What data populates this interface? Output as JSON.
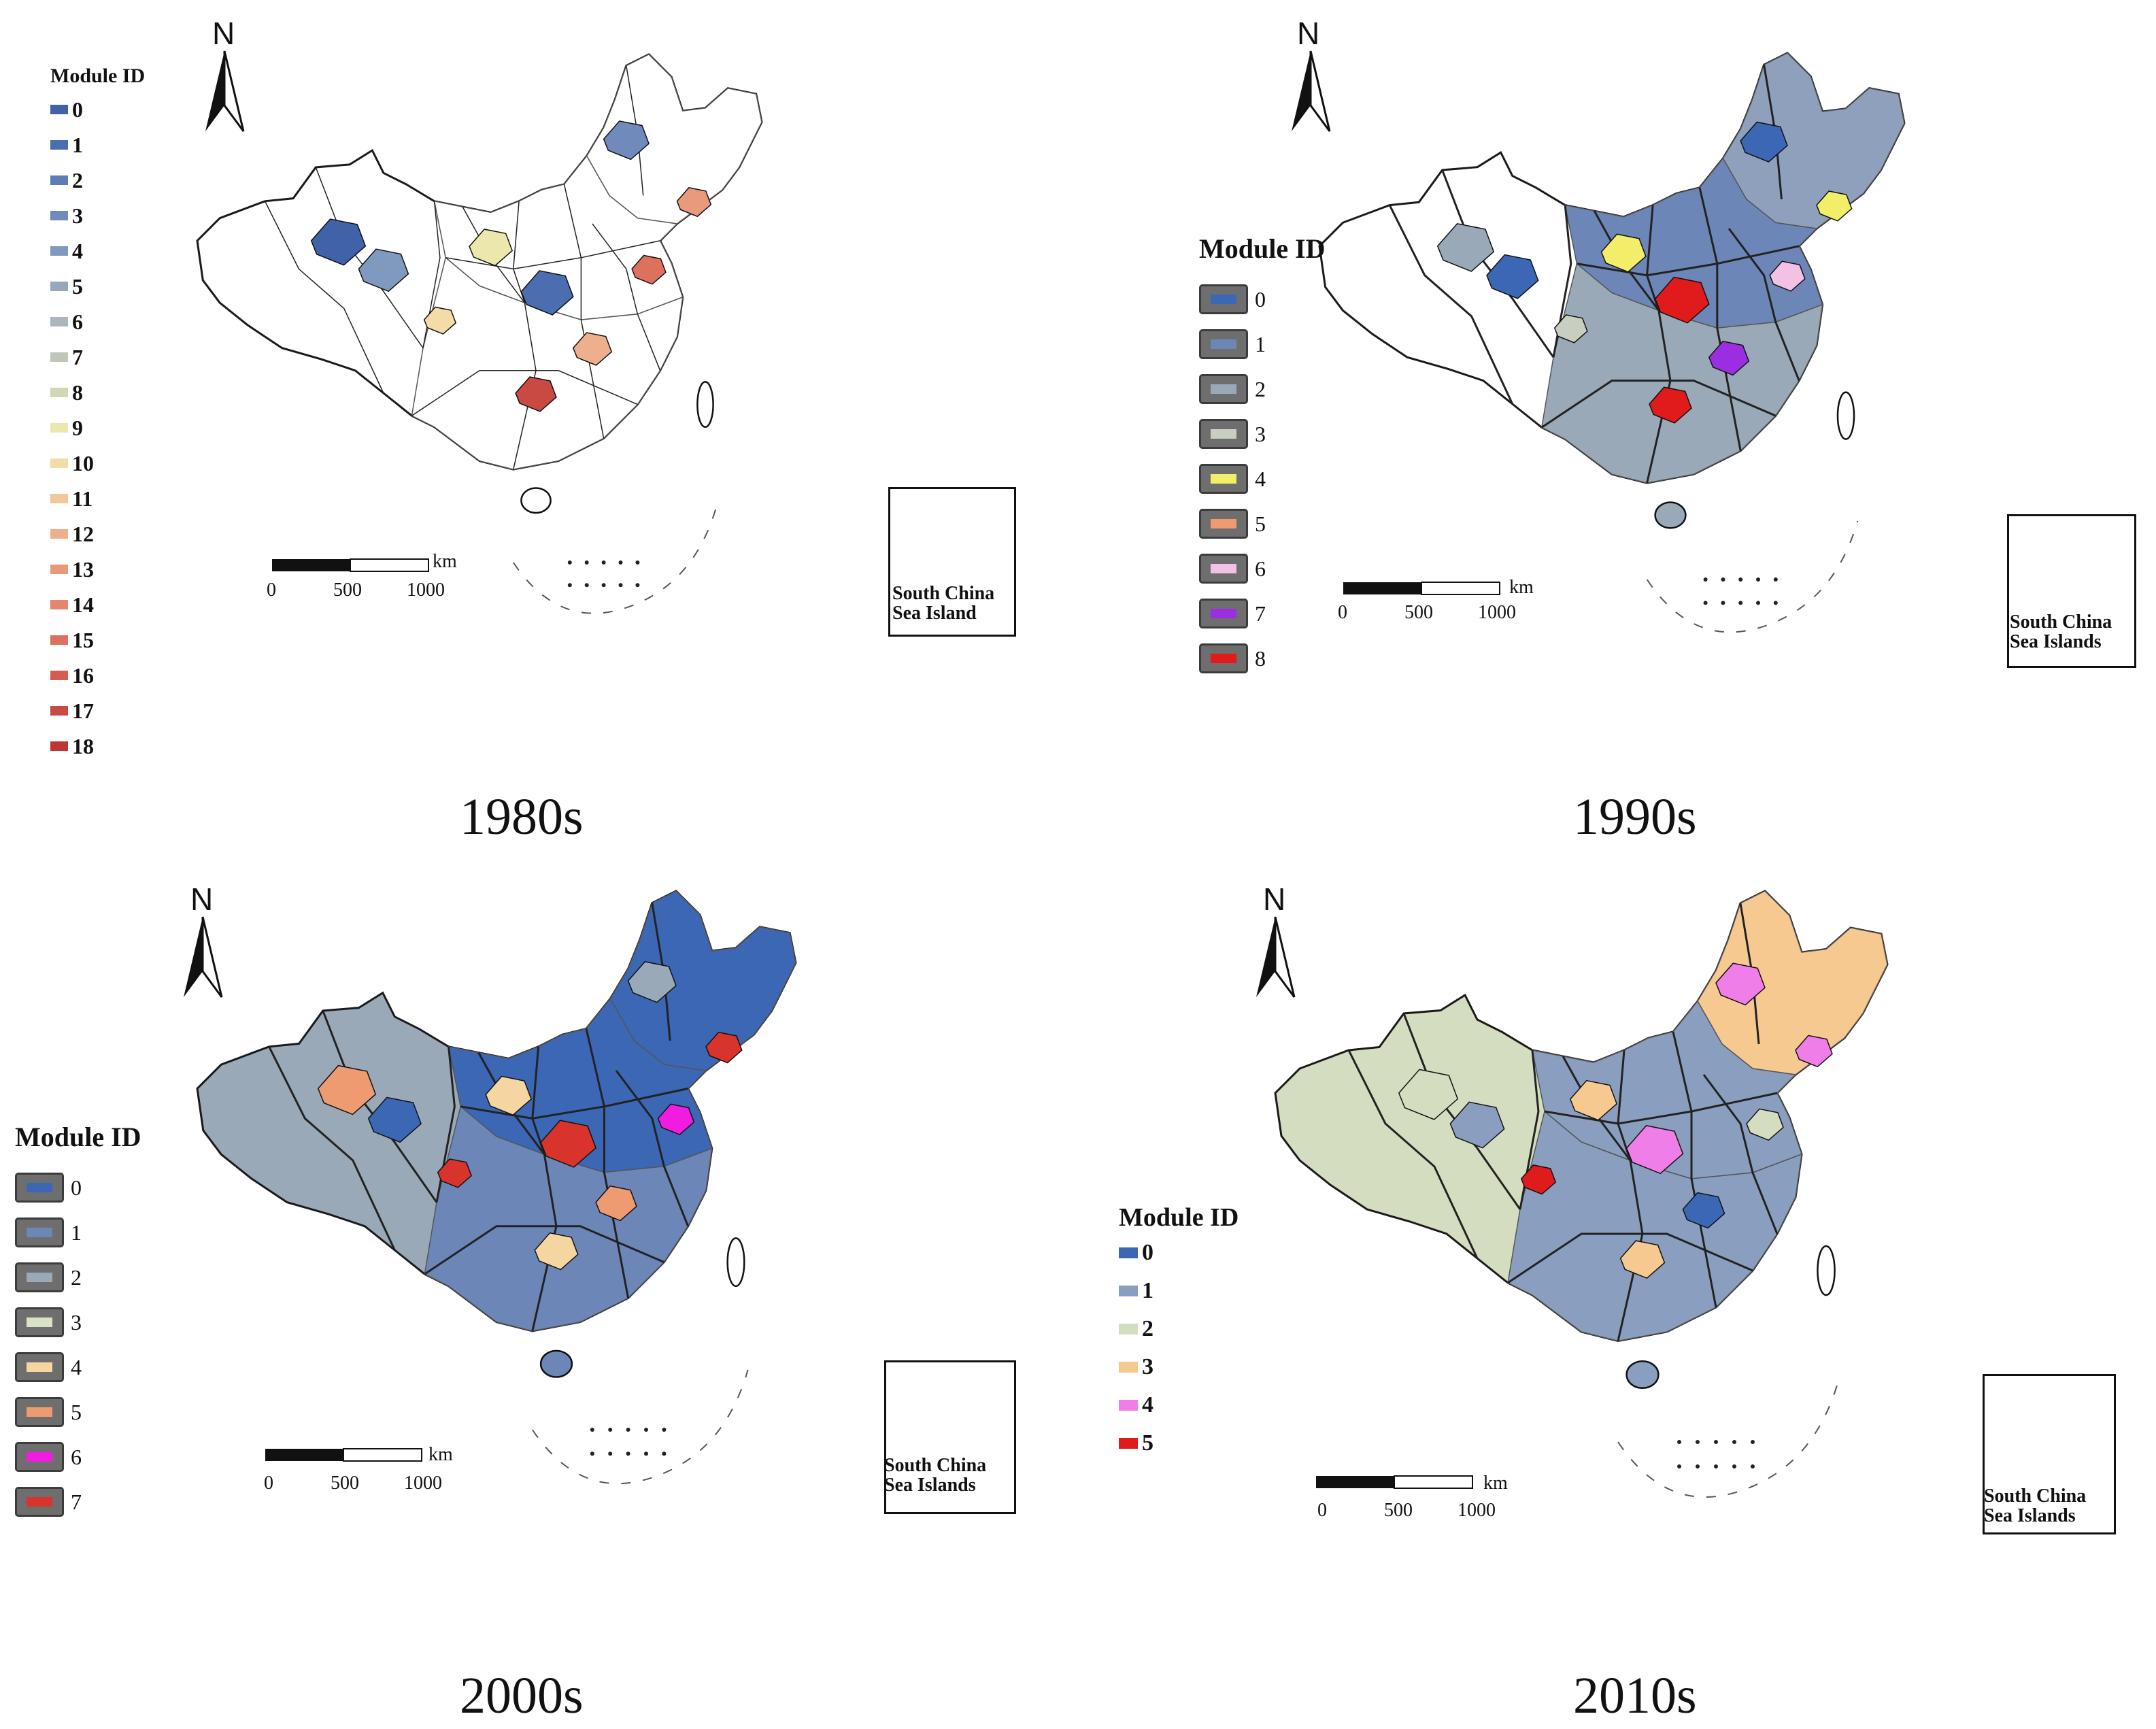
{
  "figure_title": "",
  "colors": {
    "outline": "#1a1a1a",
    "empty": "#ffffff",
    "panel_bg": "#f7f7f7"
  },
  "panels": [
    {
      "id": "p1980",
      "caption": "1980s",
      "legend": {
        "title": "Module ID",
        "style": "plain",
        "items": [
          {
            "label": "0",
            "color": "#3f62a8"
          },
          {
            "label": "1",
            "color": "#4a6eb0"
          },
          {
            "label": "2",
            "color": "#5c7db8"
          },
          {
            "label": "3",
            "color": "#6f8abb"
          },
          {
            "label": "4",
            "color": "#8099bf"
          },
          {
            "label": "5",
            "color": "#96a8be"
          },
          {
            "label": "6",
            "color": "#aab8bd"
          },
          {
            "label": "7",
            "color": "#bfc8b8"
          },
          {
            "label": "8",
            "color": "#d3d8b2"
          },
          {
            "label": "9",
            "color": "#ece8ad"
          },
          {
            "label": "10",
            "color": "#f3dca6"
          },
          {
            "label": "11",
            "color": "#f1c79b"
          },
          {
            "label": "12",
            "color": "#eeb08c"
          },
          {
            "label": "13",
            "color": "#e99a7c"
          },
          {
            "label": "14",
            "color": "#e3866c"
          },
          {
            "label": "15",
            "color": "#dc725d"
          },
          {
            "label": "16",
            "color": "#d35e4f"
          },
          {
            "label": "17",
            "color": "#c94a42"
          },
          {
            "label": "18",
            "color": "#bf3535"
          }
        ]
      },
      "north": "N",
      "scale": {
        "ticks": [
          "0",
          "500",
          "1000"
        ],
        "unit": "km"
      },
      "inset_label": "South China Sea Island",
      "fill": {
        "west": "#ffffff",
        "northeast": "#ffffff",
        "center": "#ffffff",
        "south": "#ffffff",
        "patches": [
          "#4a6eb0",
          "#ece8ad",
          "#eeb08c",
          "#dc725d",
          "#6f8abb",
          "#f3dca6",
          "#c94a42",
          "#8099bf",
          "#e99a7c",
          "#3f62a8"
        ]
      }
    },
    {
      "id": "p1990",
      "caption": "1990s",
      "legend": {
        "title": "Module ID",
        "style": "box",
        "items": [
          {
            "label": "0",
            "color": "#3b67b5"
          },
          {
            "label": "1",
            "color": "#6c86b8"
          },
          {
            "label": "2",
            "color": "#9aa9b8"
          },
          {
            "label": "3",
            "color": "#c9cfc0"
          },
          {
            "label": "4",
            "color": "#f2ee6a"
          },
          {
            "label": "5",
            "color": "#ef9b72"
          },
          {
            "label": "6",
            "color": "#f3c0e6"
          },
          {
            "label": "7",
            "color": "#9b2ee0"
          },
          {
            "label": "8",
            "color": "#e11b1b"
          }
        ]
      },
      "north": "N",
      "scale": {
        "ticks": [
          "0",
          "500",
          "1000"
        ],
        "unit": "km"
      },
      "inset_label": "South China Sea Islands",
      "fill": {
        "west": "#ffffff",
        "northeast": "#8fa0bd",
        "center": "#6c86b8",
        "south": "#9aa9b8",
        "patches": [
          "#e11b1b",
          "#f2ee6a",
          "#9b2ee0",
          "#f3c0e6",
          "#3b67b5",
          "#c9cfc0",
          "#e11b1b",
          "#3b67b5",
          "#f2ee6a",
          "#9aa9b8"
        ]
      }
    },
    {
      "id": "p2000",
      "caption": "2000s",
      "legend": {
        "title": "Module ID",
        "style": "box",
        "items": [
          {
            "label": "0",
            "color": "#3b67b5"
          },
          {
            "label": "1",
            "color": "#6c86b8"
          },
          {
            "label": "2",
            "color": "#9aa9b8"
          },
          {
            "label": "3",
            "color": "#d9e2c5"
          },
          {
            "label": "4",
            "color": "#f6d6a0"
          },
          {
            "label": "5",
            "color": "#ef9b72"
          },
          {
            "label": "6",
            "color": "#f01ce0"
          },
          {
            "label": "7",
            "color": "#d9342b"
          }
        ]
      },
      "north": "N",
      "scale": {
        "ticks": [
          "0",
          "500",
          "1000"
        ],
        "unit": "km"
      },
      "inset_label": "South China Sea Islands",
      "fill": {
        "west": "#9aa9b8",
        "northeast": "#3b67b5",
        "center": "#3b67b5",
        "south": "#6c86b8",
        "patches": [
          "#d9342b",
          "#f6d6a0",
          "#ef9b72",
          "#f01ce0",
          "#9aa9b8",
          "#d9342b",
          "#f6d6a0",
          "#3b67b5",
          "#d9342b",
          "#ef9b72"
        ]
      }
    },
    {
      "id": "p2010",
      "caption": "2010s",
      "legend": {
        "title": "Module ID",
        "style": "plain",
        "items": [
          {
            "label": "0",
            "color": "#3b67b5"
          },
          {
            "label": "1",
            "color": "#8a9fc0"
          },
          {
            "label": "2",
            "color": "#d5ddc0"
          },
          {
            "label": "3",
            "color": "#f5c990"
          },
          {
            "label": "4",
            "color": "#f07ee8"
          },
          {
            "label": "5",
            "color": "#e01b1b"
          }
        ]
      },
      "north": "N",
      "scale": {
        "ticks": [
          "0",
          "500",
          "1000"
        ],
        "unit": "km"
      },
      "inset_label": "South China Sea Islands",
      "fill": {
        "west": "#d5ddc0",
        "northeast": "#f5c990",
        "center": "#8a9fc0",
        "south": "#8a9fc0",
        "patches": [
          "#f07ee8",
          "#f5c990",
          "#3b67b5",
          "#d5ddc0",
          "#f07ee8",
          "#e01b1b",
          "#f5c990",
          "#8a9fc0",
          "#f07ee8",
          "#d5ddc0"
        ]
      }
    }
  ]
}
